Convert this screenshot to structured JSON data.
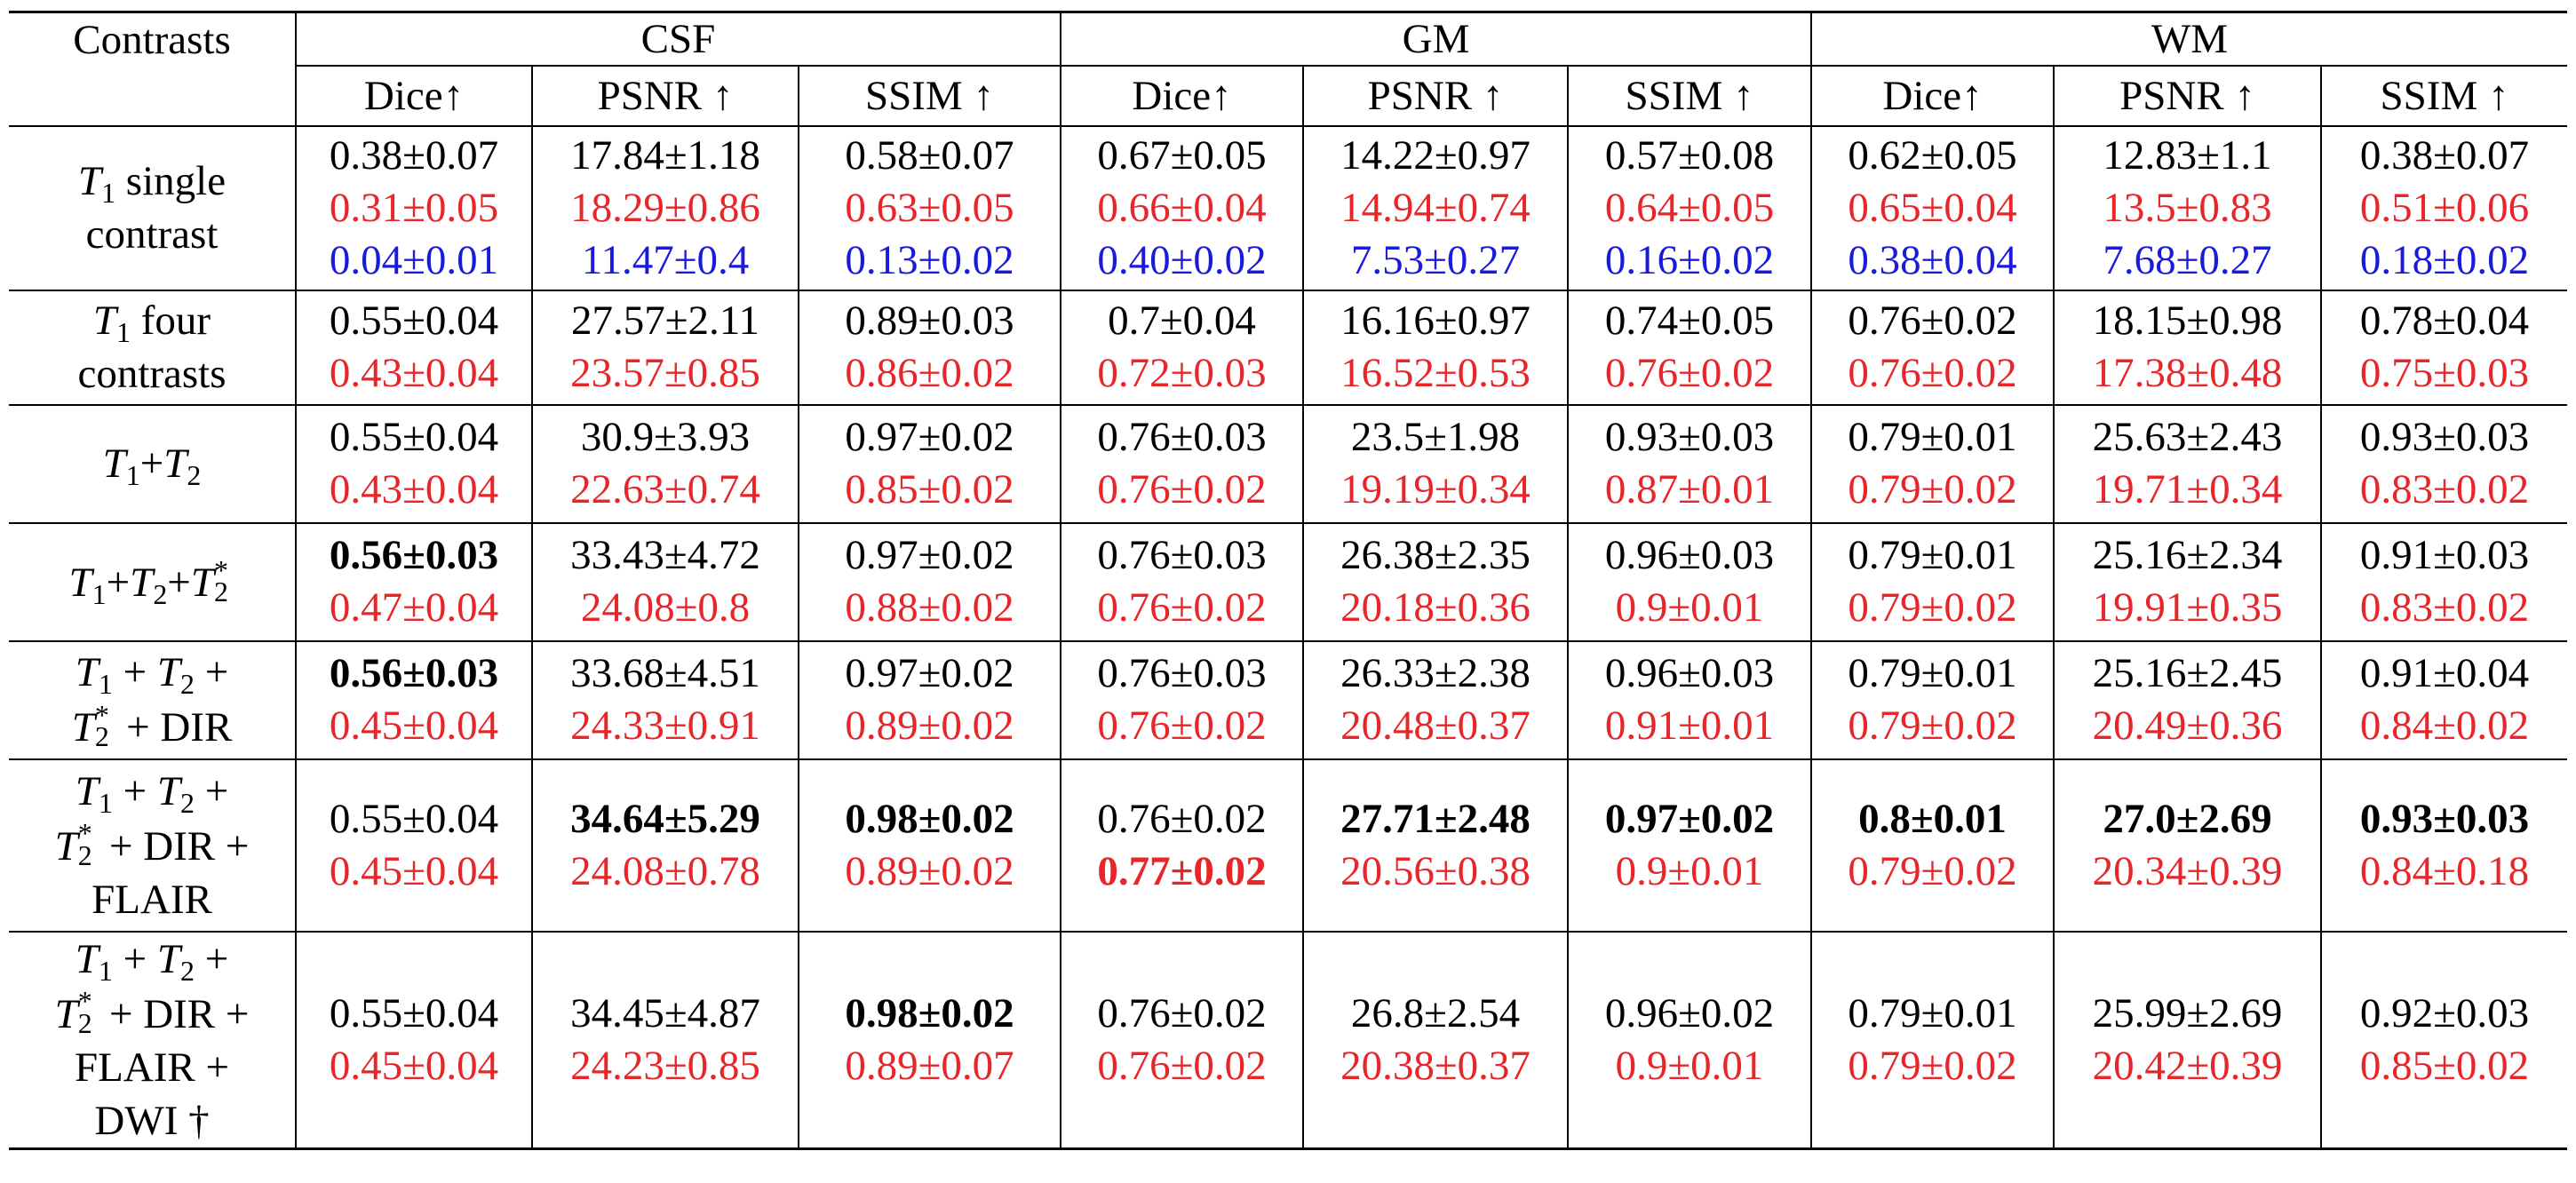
{
  "header": {
    "contrasts": "Contrasts",
    "groups": [
      "CSF",
      "GM",
      "WM"
    ],
    "metrics": [
      "Dice↑",
      "PSNR ↑",
      "SSIM ↑",
      "Dice↑",
      "PSNR ↑",
      "SSIM ↑",
      "Dice↑",
      "PSNR ↑",
      "SSIM ↑"
    ]
  },
  "rows": [
    {
      "label": [
        "T1 single",
        "contrast"
      ],
      "lines": [
        {
          "color": "black",
          "cells": [
            "0.38±0.07",
            "17.84±1.18",
            "0.58±0.07",
            "0.67±0.05",
            "14.22±0.97",
            "0.57±0.08",
            "0.62±0.05",
            "12.83±1.1",
            "0.38±0.07"
          ]
        },
        {
          "color": "red",
          "cells": [
            "0.31±0.05",
            "18.29±0.86",
            "0.63±0.05",
            "0.66±0.04",
            "14.94±0.74",
            "0.64±0.05",
            "0.65±0.04",
            "13.5±0.83",
            "0.51±0.06"
          ]
        },
        {
          "color": "blue",
          "cells": [
            "0.04±0.01",
            "11.47±0.4",
            "0.13±0.02",
            "0.40±0.02",
            "7.53±0.27",
            "0.16±0.02",
            "0.38±0.04",
            "7.68±0.27",
            "0.18±0.02"
          ]
        }
      ]
    },
    {
      "label": [
        "T1 four",
        "contrasts"
      ],
      "lines": [
        {
          "color": "black",
          "cells": [
            "0.55±0.04",
            "27.57±2.11",
            "0.89±0.03",
            "0.7±0.04",
            "16.16±0.97",
            "0.74±0.05",
            "0.76±0.02",
            "18.15±0.98",
            "0.78±0.04"
          ]
        },
        {
          "color": "red",
          "cells": [
            "0.43±0.04",
            "23.57±0.85",
            "0.86±0.02",
            "0.72±0.03",
            "16.52±0.53",
            "0.76±0.02",
            "0.76±0.02",
            "17.38±0.48",
            "0.75±0.03"
          ]
        }
      ]
    },
    {
      "label": [
        "T1+T2"
      ],
      "lines": [
        {
          "color": "black",
          "cells": [
            "0.55±0.04",
            "30.9±3.93",
            "0.97±0.02",
            "0.76±0.03",
            "23.5±1.98",
            "0.93±0.03",
            "0.79±0.01",
            "25.63±2.43",
            "0.93±0.03"
          ]
        },
        {
          "color": "red",
          "cells": [
            "0.43±0.04",
            "22.63±0.74",
            "0.85±0.02",
            "0.76±0.02",
            "19.19±0.34",
            "0.87±0.01",
            "0.79±0.02",
            "19.71±0.34",
            "0.83±0.02"
          ]
        }
      ]
    },
    {
      "label": [
        "T1+T2+T2*"
      ],
      "lines": [
        {
          "color": "black",
          "cells": [
            "0.56±0.03",
            "33.43±4.72",
            "0.97±0.02",
            "0.76±0.03",
            "26.38±2.35",
            "0.96±0.03",
            "0.79±0.01",
            "25.16±2.34",
            "0.91±0.03"
          ],
          "bold": [
            0
          ]
        },
        {
          "color": "red",
          "cells": [
            "0.47±0.04",
            "24.08±0.8",
            "0.88±0.02",
            "0.76±0.02",
            "20.18±0.36",
            "0.9±0.01",
            "0.79±0.02",
            "19.91±0.35",
            "0.83±0.02"
          ]
        }
      ]
    },
    {
      "label": [
        "T1 + T2 +",
        "T2* + DIR"
      ],
      "lines": [
        {
          "color": "black",
          "cells": [
            "0.56±0.03",
            "33.68±4.51",
            "0.97±0.02",
            "0.76±0.03",
            "26.33±2.38",
            "0.96±0.03",
            "0.79±0.01",
            "25.16±2.45",
            "0.91±0.04"
          ],
          "bold": [
            0
          ]
        },
        {
          "color": "red",
          "cells": [
            "0.45±0.04",
            "24.33±0.91",
            "0.89±0.02",
            "0.76±0.02",
            "20.48±0.37",
            "0.91±0.01",
            "0.79±0.02",
            "20.49±0.36",
            "0.84±0.02"
          ]
        }
      ]
    },
    {
      "label": [
        "T1 + T2 +",
        "T2* + DIR +",
        "FLAIR"
      ],
      "lines": [
        {
          "color": "black",
          "cells": [
            "0.55±0.04",
            "34.64±5.29",
            "0.98±0.02",
            "0.76±0.02",
            "27.71±2.48",
            "0.97±0.02",
            "0.8±0.01",
            "27.0±2.69",
            "0.93±0.03"
          ],
          "bold": [
            1,
            2,
            4,
            5,
            6,
            7,
            8
          ]
        },
        {
          "color": "red",
          "cells": [
            "0.45±0.04",
            "24.08±0.78",
            "0.89±0.02",
            "0.77±0.02",
            "20.56±0.38",
            "0.9±0.01",
            "0.79±0.02",
            "20.34±0.39",
            "0.84±0.18"
          ],
          "bold": [
            3
          ]
        }
      ]
    },
    {
      "label": [
        "T1 + T2 +",
        "T2* + DIR +",
        "FLAIR +",
        "DWI †"
      ],
      "lines": [
        {
          "color": "black",
          "cells": [
            "0.55±0.04",
            "34.45±4.87",
            "0.98±0.02",
            "0.76±0.02",
            "26.8±2.54",
            "0.96±0.02",
            "0.79±0.01",
            "25.99±2.69",
            "0.92±0.03"
          ],
          "bold": [
            2
          ]
        },
        {
          "color": "red",
          "cells": [
            "0.45±0.04",
            "24.23±0.85",
            "0.89±0.07",
            "0.76±0.02",
            "20.38±0.37",
            "0.9±0.01",
            "0.79±0.02",
            "20.42±0.39",
            "0.85±0.02"
          ]
        }
      ]
    }
  ]
}
